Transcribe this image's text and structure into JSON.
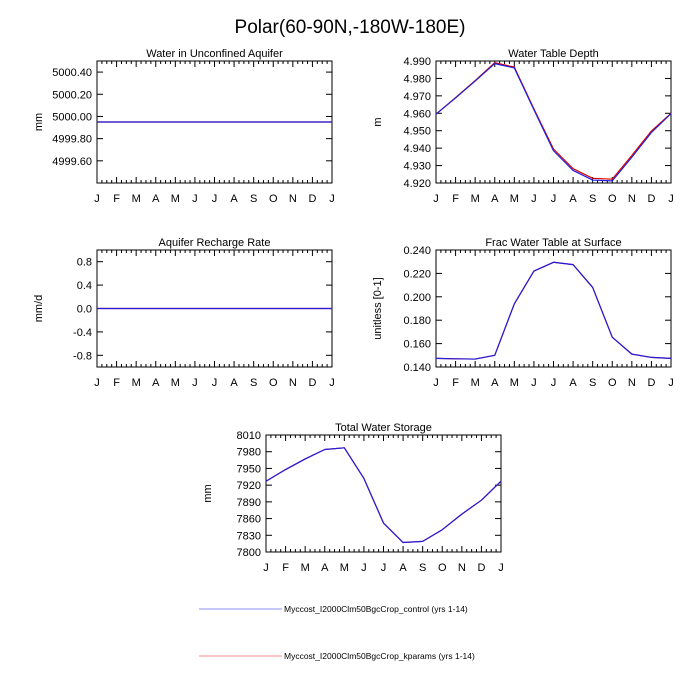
{
  "figure_title": "Polar(60-90N,-180W-180E)",
  "colors": {
    "control": "#1f1fe0",
    "kparams": "#e00000"
  },
  "legend": [
    {
      "label": "Myccost_I2000Clm50BgcCrop_control (yrs 1-14)",
      "color": "#8c8cf0"
    },
    {
      "label": "Myccost_I2000Clm50BgcCrop_kparams (yrs 1-14)",
      "color": "#f08c8c"
    }
  ],
  "chart_data": [
    {
      "type": "line",
      "title": "Water in Unconfined Aquifer",
      "ylabel": "mm",
      "xlabel": "",
      "categories": [
        "J",
        "F",
        "M",
        "A",
        "M",
        "J",
        "J",
        "A",
        "S",
        "O",
        "N",
        "D",
        "J"
      ],
      "ylim": [
        4999.4,
        5000.5
      ],
      "yticks": [
        4999.6,
        4999.8,
        5000.0,
        5000.2,
        5000.4
      ],
      "ytick_labels": [
        "4999.60",
        "4999.80",
        "5000.00",
        "5000.20",
        "5000.40"
      ],
      "grid": false,
      "series": [
        {
          "name": "Myccost_I2000Clm50BgcCrop_kparams (yrs 1-14)",
          "color": "#e00000",
          "values": [
            4999.95,
            4999.95,
            4999.95,
            4999.95,
            4999.95,
            4999.95,
            4999.95,
            4999.95,
            4999.95,
            4999.95,
            4999.95,
            4999.95,
            4999.95
          ]
        },
        {
          "name": "Myccost_I2000Clm50BgcCrop_control (yrs 1-14)",
          "color": "#1f1fe0",
          "values": [
            4999.95,
            4999.95,
            4999.95,
            4999.95,
            4999.95,
            4999.95,
            4999.95,
            4999.95,
            4999.95,
            4999.95,
            4999.95,
            4999.95,
            4999.95
          ]
        }
      ]
    },
    {
      "type": "line",
      "title": "Water Table Depth",
      "ylabel": "m",
      "xlabel": "",
      "categories": [
        "J",
        "F",
        "M",
        "A",
        "M",
        "J",
        "J",
        "A",
        "S",
        "O",
        "N",
        "D",
        "J"
      ],
      "ylim": [
        4.92,
        4.99
      ],
      "yticks": [
        4.92,
        4.93,
        4.94,
        4.95,
        4.96,
        4.97,
        4.98,
        4.99
      ],
      "ytick_labels": [
        "4.920",
        "4.930",
        "4.940",
        "4.950",
        "4.960",
        "4.970",
        "4.980",
        "4.990"
      ],
      "grid": false,
      "series": [
        {
          "name": "Myccost_I2000Clm50BgcCrop_kparams (yrs 1-14)",
          "color": "#e00000",
          "values": [
            4.9595,
            4.969,
            4.9788,
            4.989,
            4.9865,
            4.9625,
            4.9395,
            4.9282,
            4.9227,
            4.9222,
            4.9358,
            4.9498,
            4.96
          ]
        },
        {
          "name": "Myccost_I2000Clm50BgcCrop_control (yrs 1-14)",
          "color": "#1f1fe0",
          "values": [
            4.9595,
            4.9688,
            4.9785,
            4.9885,
            4.986,
            4.962,
            4.9385,
            4.9272,
            4.9217,
            4.9212,
            4.9348,
            4.949,
            4.9598
          ]
        }
      ]
    },
    {
      "type": "line",
      "title": "Aquifer Recharge Rate",
      "ylabel": "mm/d",
      "xlabel": "",
      "categories": [
        "J",
        "F",
        "M",
        "A",
        "M",
        "J",
        "J",
        "A",
        "S",
        "O",
        "N",
        "D",
        "J"
      ],
      "ylim": [
        -1.0,
        1.0
      ],
      "yticks": [
        -0.8,
        -0.4,
        0.0,
        0.4,
        0.8
      ],
      "ytick_labels": [
        "-0.8",
        "-0.4",
        "0.0",
        "0.4",
        "0.8"
      ],
      "grid": false,
      "series": [
        {
          "name": "Myccost_I2000Clm50BgcCrop_kparams (yrs 1-14)",
          "color": "#e00000",
          "values": [
            0,
            0,
            0,
            0,
            0,
            0,
            0,
            0,
            0,
            0,
            0,
            0,
            0
          ]
        },
        {
          "name": "Myccost_I2000Clm50BgcCrop_control (yrs 1-14)",
          "color": "#1f1fe0",
          "values": [
            0,
            0,
            0,
            0,
            0,
            0,
            0,
            0,
            0,
            0,
            0,
            0,
            0
          ]
        }
      ]
    },
    {
      "type": "line",
      "title": "Frac Water Table at Surface",
      "ylabel": "unitless [0-1]",
      "xlabel": "",
      "categories": [
        "J",
        "F",
        "M",
        "A",
        "M",
        "J",
        "J",
        "A",
        "S",
        "O",
        "N",
        "D",
        "J"
      ],
      "ylim": [
        0.14,
        0.24
      ],
      "yticks": [
        0.14,
        0.16,
        0.18,
        0.2,
        0.22,
        0.24
      ],
      "ytick_labels": [
        "0.140",
        "0.160",
        "0.180",
        "0.200",
        "0.220",
        "0.240"
      ],
      "grid": false,
      "series": [
        {
          "name": "Myccost_I2000Clm50BgcCrop_kparams (yrs 1-14)",
          "color": "#e00000",
          "values": [
            0.1474,
            0.147,
            0.1468,
            0.15,
            0.194,
            0.222,
            0.2295,
            0.2275,
            0.208,
            0.1655,
            0.151,
            0.1482,
            0.1474
          ]
        },
        {
          "name": "Myccost_I2000Clm50BgcCrop_control (yrs 1-14)",
          "color": "#1f1fe0",
          "values": [
            0.1474,
            0.147,
            0.1468,
            0.15,
            0.194,
            0.222,
            0.2295,
            0.2275,
            0.208,
            0.1655,
            0.151,
            0.1482,
            0.1474
          ]
        }
      ]
    },
    {
      "type": "line",
      "title": "Total Water Storage",
      "ylabel": "mm",
      "xlabel": "",
      "categories": [
        "J",
        "F",
        "M",
        "A",
        "M",
        "J",
        "J",
        "A",
        "S",
        "O",
        "N",
        "D",
        "J"
      ],
      "ylim": [
        7800,
        8010
      ],
      "yticks": [
        7800,
        7830,
        7860,
        7890,
        7920,
        7950,
        7980,
        8010
      ],
      "ytick_labels": [
        "7800",
        "7830",
        "7860",
        "7890",
        "7920",
        "7950",
        "7980",
        "8010"
      ],
      "grid": false,
      "series": [
        {
          "name": "Myccost_I2000Clm50BgcCrop_kparams (yrs 1-14)",
          "color": "#e00000",
          "values": [
            7927,
            7948,
            7967,
            7984,
            7987,
            7932,
            7852,
            7817,
            7819,
            7840,
            7868,
            7893,
            7927
          ]
        },
        {
          "name": "Myccost_I2000Clm50BgcCrop_control (yrs 1-14)",
          "color": "#1f1fe0",
          "values": [
            7927,
            7948,
            7967,
            7984,
            7987,
            7932,
            7852,
            7817,
            7819,
            7840,
            7868,
            7893,
            7927
          ]
        }
      ]
    }
  ]
}
